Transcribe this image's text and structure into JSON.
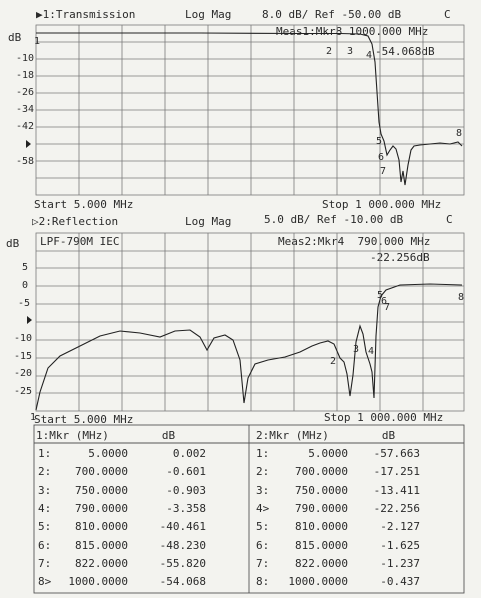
{
  "ch1": {
    "header": "▶1:Transmission",
    "format": "Log Mag",
    "scale": "8.0 dB/ Ref -50.00 dB",
    "cflag": "C",
    "unit": "dB",
    "meas": "Meas1:Mkr8 1000.000 MHz",
    "meas_value": "-54.068dB",
    "ticks": [
      "-10",
      "-18",
      "-26",
      "-34",
      "-42",
      "-58"
    ],
    "start": "Start 5.000 MHz",
    "stop": "Stop 1 000.000 MHz"
  },
  "ch2": {
    "header": "▷2:Reflection",
    "format": "Log Mag",
    "scale": "5.0 dB/ Ref -10.00 dB",
    "cflag": "C",
    "unit": "dB",
    "title": "LPF-790M IEC",
    "meas": "Meas2:Mkr4  790.000 MHz",
    "meas_value": "-22.256dB",
    "ticks": [
      "5",
      "0",
      "-5",
      "-10",
      "-15",
      "-20",
      "-25"
    ],
    "start": "Start 5.000 MHz",
    "stop": "Stop 1 000.000 MHz"
  },
  "table1": {
    "header": "1:Mkr (MHz)        dB",
    "rows": [
      {
        "n": "1:",
        "f": "5.0000",
        "v": "0.002"
      },
      {
        "n": "2:",
        "f": "700.0000",
        "v": "-0.601"
      },
      {
        "n": "3:",
        "f": "750.0000",
        "v": "-0.903"
      },
      {
        "n": "4:",
        "f": "790.0000",
        "v": "-3.358"
      },
      {
        "n": "5:",
        "f": "810.0000",
        "v": "-40.461"
      },
      {
        "n": "6:",
        "f": "815.0000",
        "v": "-48.230"
      },
      {
        "n": "7:",
        "f": "822.0000",
        "v": "-55.820"
      },
      {
        "n": "8>",
        "f": "1000.0000",
        "v": "-54.068"
      }
    ]
  },
  "table2": {
    "header": "2:Mkr (MHz)        dB",
    "rows": [
      {
        "n": "1:",
        "f": "5.0000",
        "v": "-57.663"
      },
      {
        "n": "2:",
        "f": "700.0000",
        "v": "-17.251"
      },
      {
        "n": "3:",
        "f": "750.0000",
        "v": "-13.411"
      },
      {
        "n": "4>",
        "f": "790.0000",
        "v": "-22.256"
      },
      {
        "n": "5:",
        "f": "810.0000",
        "v": "-2.127"
      },
      {
        "n": "6:",
        "f": "815.0000",
        "v": "-1.625"
      },
      {
        "n": "7:",
        "f": "822.0000",
        "v": "-1.237"
      },
      {
        "n": "8:",
        "f": "1000.0000",
        "v": "-0.437"
      }
    ]
  },
  "marker_labels1": [
    "1",
    "2",
    "3",
    "4",
    "5",
    "6",
    "7",
    "8"
  ],
  "marker_labels2": [
    "1",
    "2",
    "3",
    "4",
    "5",
    "6",
    "7",
    "8"
  ]
}
